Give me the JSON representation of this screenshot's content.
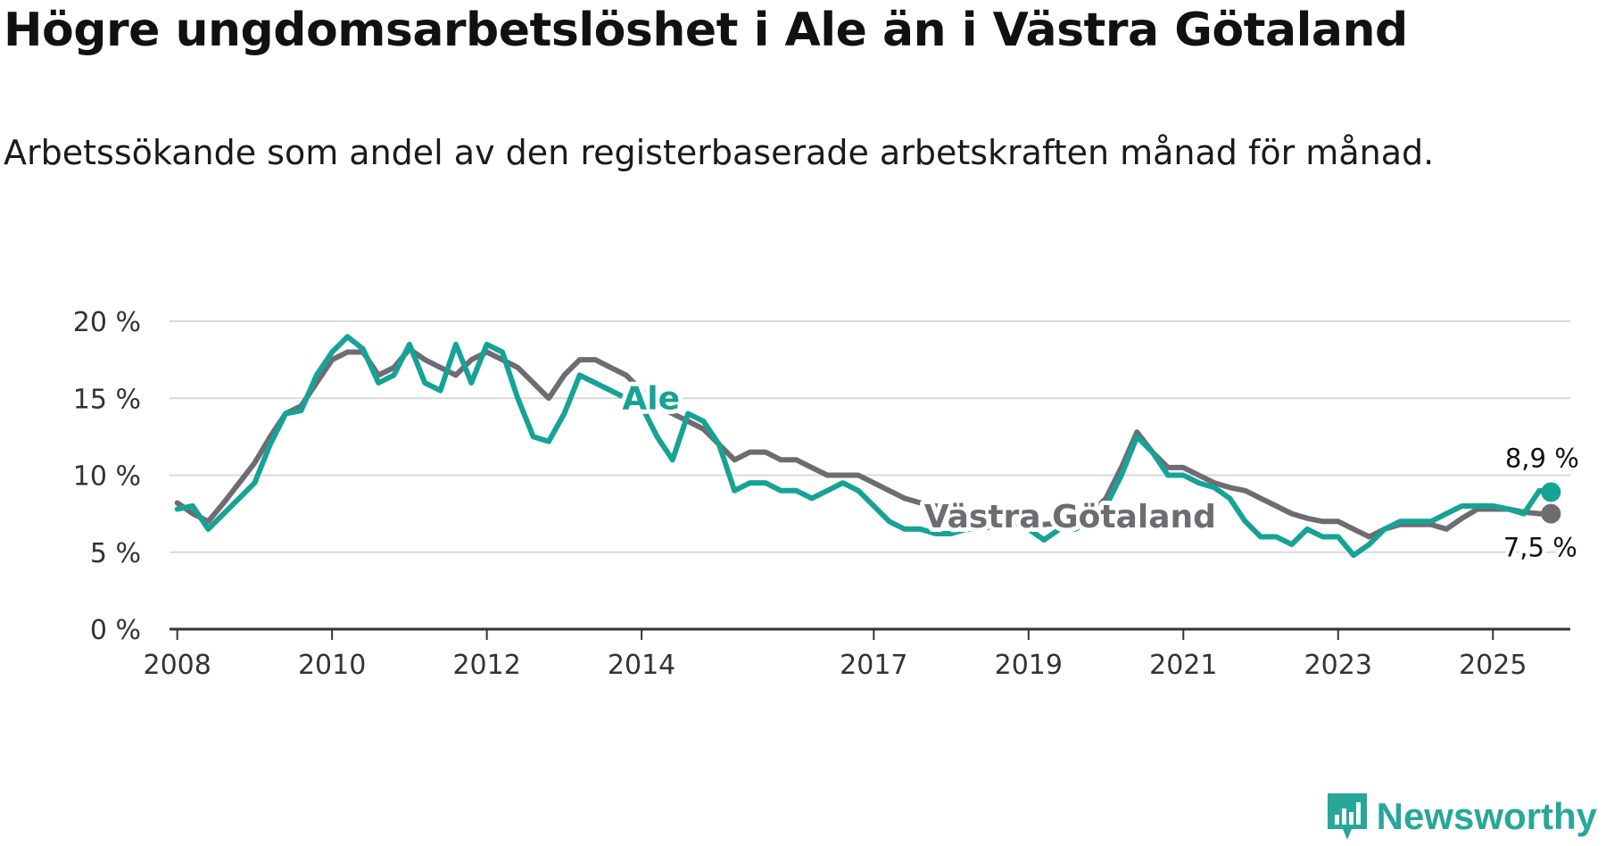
{
  "title": "Högre ungdomsarbetslöshet i Ale än i Västra Götaland",
  "subtitle": "Arbetssökande som andel av den registerbaserade arbetskraften månad för månad.",
  "brand": {
    "name": "Newsworthy"
  },
  "colors": {
    "ale": "#16a396",
    "vg": "#6f6c71",
    "grid": "#d9d9d9",
    "axis": "#333333"
  },
  "chart_data": {
    "type": "line",
    "title": "Högre ungdomsarbetslöshet i Ale än i Västra Götaland",
    "xlabel": "",
    "ylabel": "",
    "ylim": [
      0,
      20
    ],
    "xlim": [
      2007.9,
      2026.0
    ],
    "grid": true,
    "y_ticks": [
      {
        "value": 0,
        "label": "0 %"
      },
      {
        "value": 5,
        "label": "5 %"
      },
      {
        "value": 10,
        "label": "10 %"
      },
      {
        "value": 15,
        "label": "15 %"
      },
      {
        "value": 20,
        "label": "20 %"
      }
    ],
    "x_ticks": [
      {
        "value": 2008,
        "label": "2008"
      },
      {
        "value": 2010,
        "label": "2010"
      },
      {
        "value": 2012,
        "label": "2012"
      },
      {
        "value": 2014,
        "label": "2014"
      },
      {
        "value": 2017,
        "label": "2017"
      },
      {
        "value": 2019,
        "label": "2019"
      },
      {
        "value": 2021,
        "label": "2021"
      },
      {
        "value": 2023,
        "label": "2023"
      },
      {
        "value": 2025,
        "label": "2025"
      }
    ],
    "series": [
      {
        "name": "Västra Götaland",
        "label": "Västra Götaland",
        "color": "#6f6c71",
        "end_label": "7,5 %",
        "points": [
          [
            2008.0,
            8.2
          ],
          [
            2008.2,
            7.5
          ],
          [
            2008.4,
            7.0
          ],
          [
            2008.6,
            8.2
          ],
          [
            2008.8,
            9.5
          ],
          [
            2009.0,
            10.8
          ],
          [
            2009.2,
            12.5
          ],
          [
            2009.4,
            14.0
          ],
          [
            2009.6,
            14.5
          ],
          [
            2009.8,
            16.0
          ],
          [
            2010.0,
            17.5
          ],
          [
            2010.2,
            18.0
          ],
          [
            2010.4,
            18.0
          ],
          [
            2010.6,
            16.5
          ],
          [
            2010.8,
            17.0
          ],
          [
            2011.0,
            18.2
          ],
          [
            2011.2,
            17.5
          ],
          [
            2011.4,
            17.0
          ],
          [
            2011.6,
            16.5
          ],
          [
            2011.8,
            17.5
          ],
          [
            2012.0,
            18.0
          ],
          [
            2012.2,
            17.5
          ],
          [
            2012.4,
            17.0
          ],
          [
            2012.6,
            16.0
          ],
          [
            2012.8,
            15.0
          ],
          [
            2013.0,
            16.5
          ],
          [
            2013.2,
            17.5
          ],
          [
            2013.4,
            17.5
          ],
          [
            2013.6,
            17.0
          ],
          [
            2013.8,
            16.5
          ],
          [
            2014.0,
            15.5
          ],
          [
            2014.2,
            14.5
          ],
          [
            2014.4,
            14.0
          ],
          [
            2014.6,
            13.5
          ],
          [
            2014.8,
            13.0
          ],
          [
            2015.0,
            12.0
          ],
          [
            2015.2,
            11.0
          ],
          [
            2015.4,
            11.5
          ],
          [
            2015.6,
            11.5
          ],
          [
            2015.8,
            11.0
          ],
          [
            2016.0,
            11.0
          ],
          [
            2016.2,
            10.5
          ],
          [
            2016.4,
            10.0
          ],
          [
            2016.6,
            10.0
          ],
          [
            2016.8,
            10.0
          ],
          [
            2017.0,
            9.5
          ],
          [
            2017.2,
            9.0
          ],
          [
            2017.4,
            8.5
          ],
          [
            2017.6,
            8.2
          ],
          [
            2017.8,
            8.0
          ],
          [
            2018.0,
            7.8
          ],
          [
            2018.2,
            7.5
          ],
          [
            2018.4,
            7.3
          ],
          [
            2018.6,
            7.2
          ],
          [
            2018.8,
            7.0
          ],
          [
            2019.0,
            6.9
          ],
          [
            2019.2,
            6.8
          ],
          [
            2019.4,
            6.9
          ],
          [
            2019.6,
            7.0
          ],
          [
            2019.8,
            7.5
          ],
          [
            2020.0,
            8.5
          ],
          [
            2020.2,
            10.5
          ],
          [
            2020.4,
            12.8
          ],
          [
            2020.6,
            11.5
          ],
          [
            2020.8,
            10.5
          ],
          [
            2021.0,
            10.5
          ],
          [
            2021.2,
            10.0
          ],
          [
            2021.4,
            9.5
          ],
          [
            2021.6,
            9.2
          ],
          [
            2021.8,
            9.0
          ],
          [
            2022.0,
            8.5
          ],
          [
            2022.2,
            8.0
          ],
          [
            2022.4,
            7.5
          ],
          [
            2022.6,
            7.2
          ],
          [
            2022.8,
            7.0
          ],
          [
            2023.0,
            7.0
          ],
          [
            2023.2,
            6.5
          ],
          [
            2023.4,
            6.0
          ],
          [
            2023.6,
            6.5
          ],
          [
            2023.8,
            6.8
          ],
          [
            2024.0,
            6.8
          ],
          [
            2024.2,
            6.8
          ],
          [
            2024.4,
            6.5
          ],
          [
            2024.6,
            7.2
          ],
          [
            2024.8,
            7.8
          ],
          [
            2025.0,
            7.8
          ],
          [
            2025.2,
            7.8
          ],
          [
            2025.4,
            7.6
          ],
          [
            2025.6,
            7.5
          ],
          [
            2025.75,
            7.5
          ]
        ]
      },
      {
        "name": "Ale",
        "label": "Ale",
        "color": "#16a396",
        "end_label": "8,9 %",
        "points": [
          [
            2008.0,
            7.8
          ],
          [
            2008.2,
            8.0
          ],
          [
            2008.4,
            6.5
          ],
          [
            2008.6,
            7.5
          ],
          [
            2008.8,
            8.5
          ],
          [
            2009.0,
            9.5
          ],
          [
            2009.2,
            12.0
          ],
          [
            2009.4,
            14.0
          ],
          [
            2009.6,
            14.2
          ],
          [
            2009.8,
            16.5
          ],
          [
            2010.0,
            18.0
          ],
          [
            2010.2,
            19.0
          ],
          [
            2010.4,
            18.2
          ],
          [
            2010.6,
            16.0
          ],
          [
            2010.8,
            16.5
          ],
          [
            2011.0,
            18.5
          ],
          [
            2011.2,
            16.0
          ],
          [
            2011.4,
            15.5
          ],
          [
            2011.6,
            18.5
          ],
          [
            2011.8,
            16.0
          ],
          [
            2012.0,
            18.5
          ],
          [
            2012.2,
            18.0
          ],
          [
            2012.4,
            15.0
          ],
          [
            2012.6,
            12.5
          ],
          [
            2012.8,
            12.2
          ],
          [
            2013.0,
            14.0
          ],
          [
            2013.2,
            16.5
          ],
          [
            2013.4,
            16.0
          ],
          [
            2013.6,
            15.5
          ],
          [
            2013.8,
            15.0
          ],
          [
            2014.0,
            14.5
          ],
          [
            2014.2,
            12.5
          ],
          [
            2014.4,
            11.0
          ],
          [
            2014.6,
            14.0
          ],
          [
            2014.8,
            13.5
          ],
          [
            2015.0,
            12.0
          ],
          [
            2015.2,
            9.0
          ],
          [
            2015.4,
            9.5
          ],
          [
            2015.6,
            9.5
          ],
          [
            2015.8,
            9.0
          ],
          [
            2016.0,
            9.0
          ],
          [
            2016.2,
            8.5
          ],
          [
            2016.4,
            9.0
          ],
          [
            2016.6,
            9.5
          ],
          [
            2016.8,
            9.0
          ],
          [
            2017.0,
            8.0
          ],
          [
            2017.2,
            7.0
          ],
          [
            2017.4,
            6.5
          ],
          [
            2017.6,
            6.5
          ],
          [
            2017.8,
            6.2
          ],
          [
            2018.0,
            6.2
          ],
          [
            2018.2,
            6.5
          ],
          [
            2018.4,
            6.5
          ],
          [
            2018.6,
            6.8
          ],
          [
            2018.8,
            7.0
          ],
          [
            2019.0,
            6.5
          ],
          [
            2019.2,
            5.8
          ],
          [
            2019.4,
            6.5
          ],
          [
            2019.6,
            6.5
          ],
          [
            2019.8,
            7.0
          ],
          [
            2020.0,
            8.0
          ],
          [
            2020.2,
            10.0
          ],
          [
            2020.4,
            12.5
          ],
          [
            2020.6,
            11.5
          ],
          [
            2020.8,
            10.0
          ],
          [
            2021.0,
            10.0
          ],
          [
            2021.2,
            9.5
          ],
          [
            2021.4,
            9.2
          ],
          [
            2021.6,
            8.5
          ],
          [
            2021.8,
            7.0
          ],
          [
            2022.0,
            6.0
          ],
          [
            2022.2,
            6.0
          ],
          [
            2022.4,
            5.5
          ],
          [
            2022.6,
            6.5
          ],
          [
            2022.8,
            6.0
          ],
          [
            2023.0,
            6.0
          ],
          [
            2023.2,
            4.8
          ],
          [
            2023.4,
            5.5
          ],
          [
            2023.6,
            6.5
          ],
          [
            2023.8,
            7.0
          ],
          [
            2024.0,
            7.0
          ],
          [
            2024.2,
            7.0
          ],
          [
            2024.4,
            7.5
          ],
          [
            2024.6,
            8.0
          ],
          [
            2024.8,
            8.0
          ],
          [
            2025.0,
            8.0
          ],
          [
            2025.2,
            7.8
          ],
          [
            2025.4,
            7.5
          ],
          [
            2025.6,
            9.0
          ],
          [
            2025.75,
            8.9
          ]
        ]
      }
    ]
  }
}
